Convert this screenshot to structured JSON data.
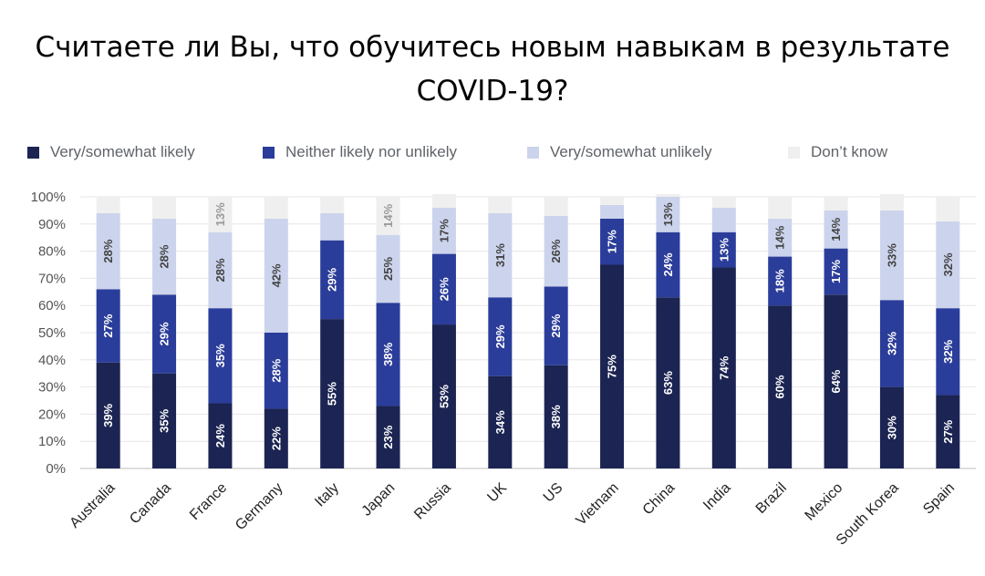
{
  "chart_data": {
    "type": "bar",
    "stacked": true,
    "orientation": "vertical",
    "title_lines": [
      "Считаете ли Вы, что обучитесь новым навыкам в результате",
      "COVID-19?"
    ],
    "xlabel": "",
    "ylabel": "",
    "ylim": [
      0,
      100
    ],
    "y_ticks": [
      "0%",
      "10%",
      "20%",
      "30%",
      "40%",
      "50%",
      "60%",
      "70%",
      "80%",
      "90%",
      "100%"
    ],
    "legend_position": "top",
    "categories": [
      "Australia",
      "Canada",
      "France",
      "Germany",
      "Italy",
      "Japan",
      "Russia",
      "UK",
      "US",
      "Vietnam",
      "China",
      "India",
      "Brazil",
      "Mexico",
      "South Korea",
      "Spain"
    ],
    "series": [
      {
        "name": "Very/somewhat likely",
        "color": "#1b2452",
        "label_color": "#ffffff",
        "values": [
          39,
          35,
          24,
          22,
          55,
          23,
          53,
          34,
          38,
          75,
          63,
          74,
          60,
          64,
          30,
          27
        ],
        "labels": [
          "39%",
          "35%",
          "24%",
          "22%",
          "55%",
          "23%",
          "53%",
          "34%",
          "38%",
          "75%",
          "63%",
          "74%",
          "60%",
          "64%",
          "30%",
          "27%"
        ]
      },
      {
        "name": "Neither likely nor unlikely",
        "color": "#2b3d9a",
        "label_color": "#ffffff",
        "values": [
          27,
          29,
          35,
          28,
          29,
          38,
          26,
          29,
          29,
          17,
          24,
          13,
          18,
          17,
          32,
          32
        ],
        "labels": [
          "27%",
          "29%",
          "35%",
          "28%",
          "29%",
          "38%",
          "26%",
          "29%",
          "29%",
          "17%",
          "24%",
          "13%",
          "18%",
          "17%",
          "32%",
          "32%"
        ]
      },
      {
        "name": "Very/somewhat unlikely",
        "color": "#ccd3ec",
        "label_color": "#444444",
        "values": [
          28,
          28,
          28,
          42,
          10,
          25,
          17,
          31,
          26,
          5,
          13,
          9,
          14,
          14,
          33,
          32
        ],
        "labels": [
          "28%",
          "28%",
          "28%",
          "42%",
          "",
          "25%",
          "17%",
          "31%",
          "26%",
          "",
          "13%",
          "",
          "14%",
          "14%",
          "33%",
          "32%"
        ]
      },
      {
        "name": "Don’t know",
        "color": "#efefef",
        "label_color": "#9a9a9a",
        "values": [
          6,
          8,
          13,
          8,
          6,
          14,
          5,
          6,
          7,
          3,
          1,
          4,
          8,
          5,
          6,
          9
        ],
        "labels": [
          "",
          "",
          "13%",
          "",
          "",
          "14%",
          "",
          "",
          "",
          "",
          "",
          "",
          "",
          "",
          "",
          ""
        ]
      }
    ]
  }
}
